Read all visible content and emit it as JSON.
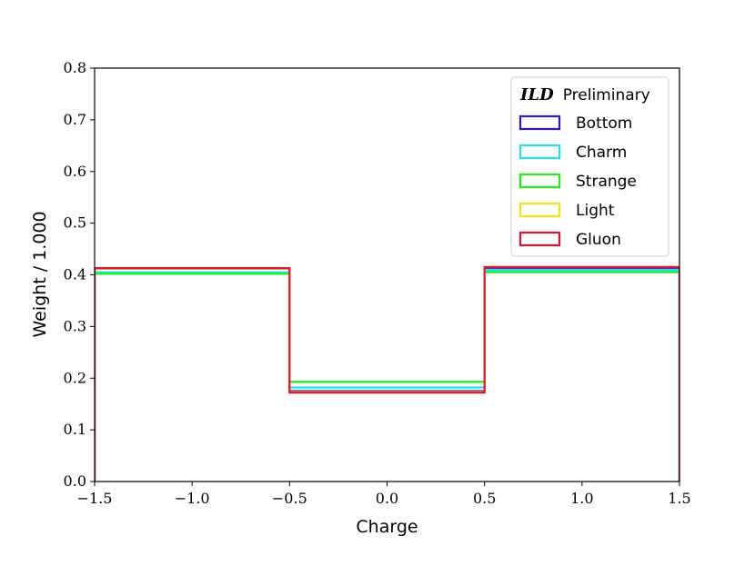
{
  "chart_data": {
    "type": "step",
    "xlabel": "Charge",
    "ylabel": "Weight / 1.000",
    "xlim": [
      -1.5,
      1.5
    ],
    "ylim": [
      0.0,
      0.8
    ],
    "xticks": [
      -1.5,
      -1.0,
      -0.5,
      0.0,
      0.5,
      1.0,
      1.5
    ],
    "xtick_labels": [
      "−1.5",
      "−1.0",
      "−0.5",
      "0.0",
      "0.5",
      "1.0",
      "1.5"
    ],
    "yticks": [
      0.0,
      0.1,
      0.2,
      0.3,
      0.4,
      0.5,
      0.6,
      0.7,
      0.8
    ],
    "ytick_labels": [
      "0.0",
      "0.1",
      "0.2",
      "0.3",
      "0.4",
      "0.5",
      "0.6",
      "0.7",
      "0.8"
    ],
    "bin_edges": [
      -1.5,
      -0.5,
      0.5,
      1.5
    ],
    "legend": {
      "title_brand": "ILD",
      "title_rest": "Preliminary",
      "position": "top-right"
    },
    "series": [
      {
        "name": "Bottom",
        "color": "#2b16d6",
        "values": [
          0.412,
          0.175,
          0.413
        ]
      },
      {
        "name": "Charm",
        "color": "#1fe3f5",
        "values": [
          0.405,
          0.182,
          0.409
        ]
      },
      {
        "name": "Strange",
        "color": "#1bf018",
        "values": [
          0.402,
          0.193,
          0.405
        ]
      },
      {
        "name": "Light",
        "color": "#f5e21b",
        "values": [
          0.412,
          0.173,
          0.415
        ]
      },
      {
        "name": "Gluon",
        "color": "#e8102e",
        "values": [
          0.413,
          0.172,
          0.415
        ]
      }
    ]
  }
}
